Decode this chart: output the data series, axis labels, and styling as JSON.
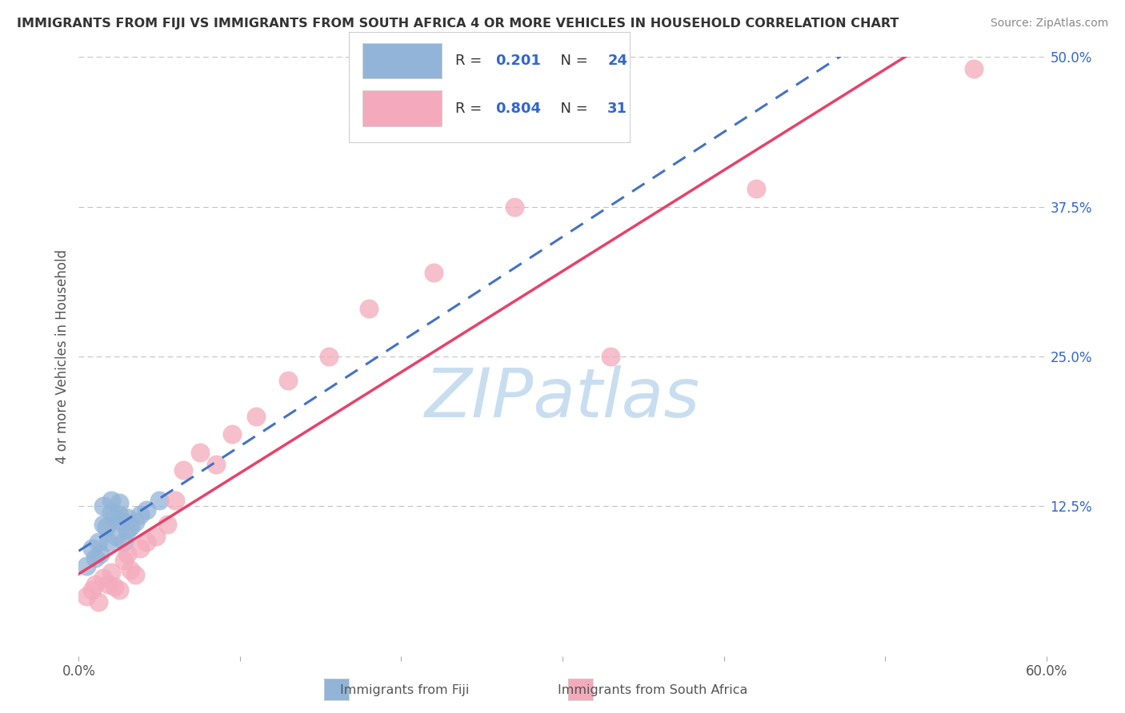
{
  "title": "IMMIGRANTS FROM FIJI VS IMMIGRANTS FROM SOUTH AFRICA 4 OR MORE VEHICLES IN HOUSEHOLD CORRELATION CHART",
  "source": "Source: ZipAtlas.com",
  "ylabel": "4 or more Vehicles in Household",
  "r_fiji": 0.201,
  "n_fiji": 24,
  "r_sa": 0.804,
  "n_sa": 31,
  "xlim": [
    0.0,
    0.6
  ],
  "ylim": [
    0.0,
    0.5
  ],
  "fiji_color": "#92B4D8",
  "fiji_line_color": "#4472C4",
  "sa_color": "#F4AABC",
  "sa_line_color": "#E8416A",
  "watermark_color": "#C8DEF0",
  "grid_color": "#AAAAAA",
  "background_color": "#FFFFFF",
  "label_color": "#3366CC",
  "tick_label_color": "#555555",
  "fiji_x": [
    0.005,
    0.008,
    0.01,
    0.012,
    0.013,
    0.015,
    0.015,
    0.017,
    0.018,
    0.02,
    0.02,
    0.022,
    0.023,
    0.025,
    0.025,
    0.027,
    0.028,
    0.03,
    0.03,
    0.032,
    0.035,
    0.038,
    0.042,
    0.05
  ],
  "fiji_y": [
    0.075,
    0.09,
    0.082,
    0.095,
    0.085,
    0.11,
    0.125,
    0.108,
    0.095,
    0.12,
    0.13,
    0.115,
    0.1,
    0.118,
    0.128,
    0.112,
    0.095,
    0.105,
    0.115,
    0.108,
    0.112,
    0.118,
    0.122,
    0.13
  ],
  "sa_x": [
    0.005,
    0.008,
    0.01,
    0.012,
    0.015,
    0.018,
    0.02,
    0.022,
    0.025,
    0.028,
    0.03,
    0.032,
    0.035,
    0.038,
    0.042,
    0.048,
    0.055,
    0.06,
    0.065,
    0.075,
    0.085,
    0.095,
    0.11,
    0.13,
    0.155,
    0.18,
    0.22,
    0.27,
    0.33,
    0.42,
    0.555
  ],
  "sa_y": [
    0.05,
    0.055,
    0.06,
    0.045,
    0.065,
    0.06,
    0.07,
    0.058,
    0.055,
    0.08,
    0.085,
    0.072,
    0.068,
    0.09,
    0.095,
    0.1,
    0.11,
    0.13,
    0.155,
    0.17,
    0.16,
    0.185,
    0.2,
    0.23,
    0.25,
    0.29,
    0.32,
    0.375,
    0.25,
    0.39,
    0.49
  ],
  "legend_fiji_label": "Immigrants from Fiji",
  "legend_sa_label": "Immigrants from South Africa"
}
